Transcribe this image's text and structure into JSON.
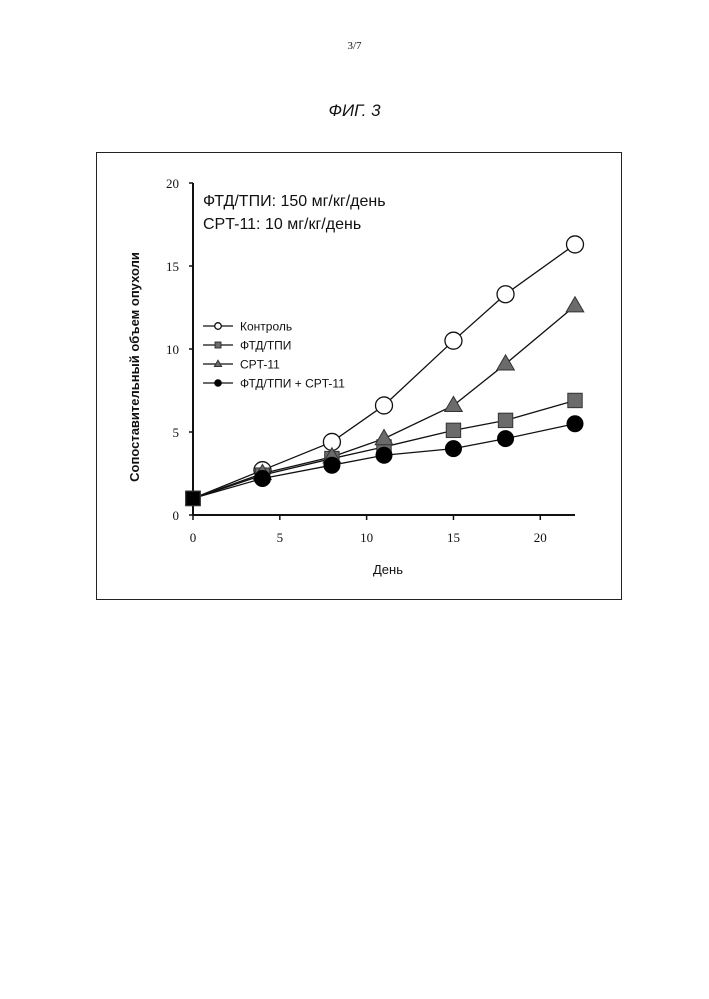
{
  "page": {
    "number": "3/7",
    "figure_title": "ФИГ. 3"
  },
  "chart_data": {
    "type": "line",
    "title": "",
    "xlabel": "День",
    "ylabel": "Сопоставительный объем опухоли",
    "xlim": [
      0,
      22
    ],
    "ylim": [
      0,
      20
    ],
    "x_ticks": [
      0,
      5,
      10,
      15,
      20
    ],
    "y_ticks": [
      0,
      5,
      10,
      15,
      20
    ],
    "grid": false,
    "legend_position": "middle-left",
    "annotations": [
      "ФТД/ТПИ: 150 мг/кг/день",
      "CPT-11: 10 мг/кг/день"
    ],
    "series": [
      {
        "name": "Контроль",
        "marker": "circle-open",
        "x": [
          0,
          4,
          8,
          11,
          15,
          18,
          22
        ],
        "values": [
          1.0,
          2.7,
          4.4,
          6.6,
          10.5,
          13.3,
          16.3
        ]
      },
      {
        "name": "ФТД/ТПИ",
        "marker": "square",
        "x": [
          0,
          4,
          8,
          11,
          15,
          18,
          22
        ],
        "values": [
          1.0,
          2.4,
          3.4,
          4.1,
          5.1,
          5.7,
          6.9
        ]
      },
      {
        "name": "CPT-11",
        "marker": "triangle",
        "x": [
          0,
          4,
          8,
          11,
          15,
          18,
          22
        ],
        "values": [
          1.0,
          2.5,
          3.5,
          4.6,
          6.6,
          9.1,
          12.6
        ]
      },
      {
        "name": "ФТД/ТПИ + CPT-11",
        "marker": "circle-filled",
        "x": [
          0,
          4,
          8,
          11,
          15,
          18,
          22
        ],
        "values": [
          1.0,
          2.2,
          3.0,
          3.6,
          4.0,
          4.6,
          5.5
        ]
      }
    ]
  }
}
